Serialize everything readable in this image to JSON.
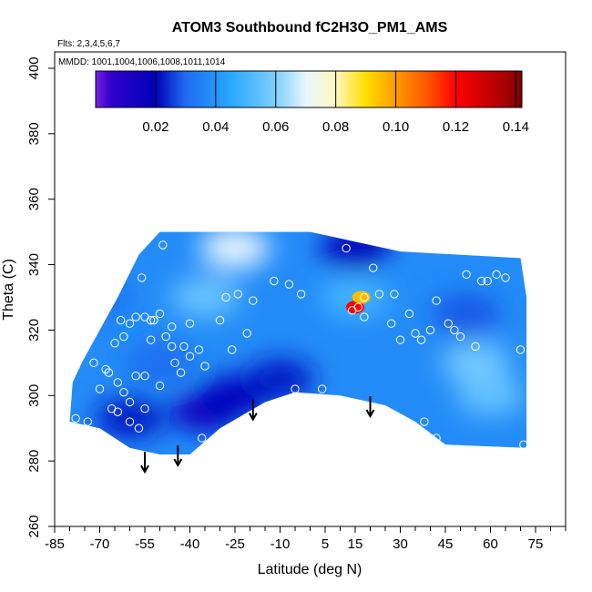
{
  "chart_data": {
    "type": "heatmap",
    "title": "ATOM3 Southbound fC2H3O_PM1_AMS",
    "flights_label": "Flts: 2,3,4,5,6,7",
    "dates_label": "MMDD: 1001,1004,1006,1008,1011,1014",
    "xlabel": "Latitude (deg N)",
    "ylabel": "Theta (C)",
    "xlim": [
      -85,
      85
    ],
    "ylim": [
      260,
      405
    ],
    "x_ticks": [
      -85,
      -70,
      -55,
      -40,
      -25,
      -10,
      5,
      15,
      30,
      45,
      60,
      75
    ],
    "y_ticks": [
      260,
      280,
      300,
      320,
      340,
      360,
      380,
      400
    ],
    "colorbar": {
      "min": 0.0,
      "max": 0.142,
      "ticks": [
        0.02,
        0.04,
        0.06,
        0.08,
        0.1,
        0.12,
        0.14
      ],
      "tick_labels": [
        "0.02",
        "0.04",
        "0.06",
        "0.08",
        "0.10",
        "0.12",
        "0.14"
      ],
      "stops": [
        {
          "value": 0.0,
          "color": "#7b1fe6"
        },
        {
          "value": 0.005,
          "color": "#3000cc"
        },
        {
          "value": 0.02,
          "color": "#0000b8"
        },
        {
          "value": 0.03,
          "color": "#1e6cf0"
        },
        {
          "value": 0.045,
          "color": "#28a8ff"
        },
        {
          "value": 0.06,
          "color": "#80cfff"
        },
        {
          "value": 0.07,
          "color": "#e8f6ff"
        },
        {
          "value": 0.08,
          "color": "#fff8c0"
        },
        {
          "value": 0.09,
          "color": "#ffe000"
        },
        {
          "value": 0.1,
          "color": "#ff9a00"
        },
        {
          "value": 0.11,
          "color": "#ff5a00"
        },
        {
          "value": 0.12,
          "color": "#ff0000"
        },
        {
          "value": 0.135,
          "color": "#b00000"
        },
        {
          "value": 0.142,
          "color": "#7a0000"
        }
      ]
    },
    "field_region": {
      "top_boundary": [
        [
          -79,
          304
        ],
        [
          -76,
          310
        ],
        [
          -70,
          320
        ],
        [
          -64,
          330
        ],
        [
          -57,
          343
        ],
        [
          -50,
          350
        ],
        [
          0,
          350
        ],
        [
          30,
          344
        ],
        [
          50,
          343
        ],
        [
          70,
          342
        ],
        [
          72,
          330
        ]
      ],
      "bottom_boundary": [
        [
          -80,
          292
        ],
        [
          -70,
          290
        ],
        [
          -60,
          284
        ],
        [
          -50,
          282
        ],
        [
          -40,
          282
        ],
        [
          -30,
          290
        ],
        [
          -15,
          298
        ],
        [
          -5,
          301
        ],
        [
          10,
          300
        ],
        [
          25,
          297
        ],
        [
          35,
          292
        ],
        [
          45,
          285
        ],
        [
          72,
          284
        ]
      ]
    },
    "field_patches": [
      {
        "lat": -35,
        "theta": 295,
        "value": 0.016
      },
      {
        "lat": -25,
        "theta": 300,
        "value": 0.018
      },
      {
        "lat": 15,
        "theta": 345,
        "value": 0.02
      },
      {
        "lat": -50,
        "theta": 310,
        "value": 0.03
      },
      {
        "lat": -60,
        "theta": 293,
        "value": 0.022
      },
      {
        "lat": -10,
        "theta": 305,
        "value": 0.022
      },
      {
        "lat": -70,
        "theta": 330,
        "value": 0.032
      },
      {
        "lat": -25,
        "theta": 345,
        "value": 0.07
      },
      {
        "lat": -35,
        "theta": 330,
        "value": 0.056
      },
      {
        "lat": 15,
        "theta": 330,
        "value": 0.05
      },
      {
        "lat": 15,
        "theta": 327,
        "value": 0.12
      },
      {
        "lat": 17,
        "theta": 330,
        "value": 0.095
      },
      {
        "lat": 55,
        "theta": 310,
        "value": 0.058
      },
      {
        "lat": 60,
        "theta": 300,
        "value": 0.055
      },
      {
        "lat": 52,
        "theta": 325,
        "value": 0.028
      }
    ],
    "observations": [
      {
        "lat": -78,
        "theta": 309
      },
      {
        "lat": -78,
        "theta": 293
      },
      {
        "lat": -72,
        "theta": 310
      },
      {
        "lat": -68,
        "theta": 308
      },
      {
        "lat": -67,
        "theta": 307
      },
      {
        "lat": -65,
        "theta": 316
      },
      {
        "lat": -66,
        "theta": 331
      },
      {
        "lat": -63,
        "theta": 323
      },
      {
        "lat": -62,
        "theta": 318
      },
      {
        "lat": -60,
        "theta": 322
      },
      {
        "lat": -58,
        "theta": 324
      },
      {
        "lat": -56,
        "theta": 336
      },
      {
        "lat": -55,
        "theta": 324
      },
      {
        "lat": -53,
        "theta": 323
      },
      {
        "lat": -52,
        "theta": 323
      },
      {
        "lat": -50,
        "theta": 325
      },
      {
        "lat": -49,
        "theta": 346
      },
      {
        "lat": -46,
        "theta": 321
      },
      {
        "lat": -45,
        "theta": 310
      },
      {
        "lat": -43,
        "theta": 307
      },
      {
        "lat": -40,
        "theta": 322
      },
      {
        "lat": -37,
        "theta": 314
      },
      {
        "lat": -35,
        "theta": 309
      },
      {
        "lat": -30,
        "theta": 323
      },
      {
        "lat": -28,
        "theta": 330
      },
      {
        "lat": -26,
        "theta": 314
      },
      {
        "lat": -24,
        "theta": 331
      },
      {
        "lat": -21,
        "theta": 319
      },
      {
        "lat": -19,
        "theta": 329
      },
      {
        "lat": -12,
        "theta": 335
      },
      {
        "lat": -7,
        "theta": 334
      },
      {
        "lat": -3,
        "theta": 331
      },
      {
        "lat": -5,
        "theta": 302
      },
      {
        "lat": 4,
        "theta": 302
      },
      {
        "lat": 12,
        "theta": 345
      },
      {
        "lat": 14,
        "theta": 326
      },
      {
        "lat": 16,
        "theta": 327
      },
      {
        "lat": 18,
        "theta": 324
      },
      {
        "lat": 18,
        "theta": 330
      },
      {
        "lat": 21,
        "theta": 339
      },
      {
        "lat": 23,
        "theta": 331
      },
      {
        "lat": 27,
        "theta": 322
      },
      {
        "lat": 28,
        "theta": 331
      },
      {
        "lat": 30,
        "theta": 317
      },
      {
        "lat": 33,
        "theta": 325
      },
      {
        "lat": 35,
        "theta": 319
      },
      {
        "lat": 37,
        "theta": 317
      },
      {
        "lat": 40,
        "theta": 320
      },
      {
        "lat": 42,
        "theta": 329
      },
      {
        "lat": 46,
        "theta": 322
      },
      {
        "lat": 48,
        "theta": 320
      },
      {
        "lat": 50,
        "theta": 318
      },
      {
        "lat": 52,
        "theta": 337
      },
      {
        "lat": 55,
        "theta": 315
      },
      {
        "lat": 57,
        "theta": 335
      },
      {
        "lat": 59,
        "theta": 335
      },
      {
        "lat": 62,
        "theta": 337
      },
      {
        "lat": 65,
        "theta": 336
      },
      {
        "lat": 70,
        "theta": 314
      },
      {
        "lat": 71,
        "theta": 285
      },
      {
        "lat": 38,
        "theta": 292
      },
      {
        "lat": 42,
        "theta": 287
      },
      {
        "lat": 47,
        "theta": 283
      },
      {
        "lat": -62,
        "theta": 301
      },
      {
        "lat": -60,
        "theta": 298
      },
      {
        "lat": -64,
        "theta": 295
      },
      {
        "lat": -60,
        "theta": 292
      },
      {
        "lat": -55,
        "theta": 296
      },
      {
        "lat": -57,
        "theta": 290
      },
      {
        "lat": -74,
        "theta": 292
      },
      {
        "lat": -66,
        "theta": 296
      },
      {
        "lat": -70,
        "theta": 302
      },
      {
        "lat": -64,
        "theta": 304
      },
      {
        "lat": -58,
        "theta": 306
      },
      {
        "lat": -55,
        "theta": 306
      },
      {
        "lat": -50,
        "theta": 303
      },
      {
        "lat": -46,
        "theta": 315
      },
      {
        "lat": -53,
        "theta": 317
      },
      {
        "lat": -48,
        "theta": 318
      },
      {
        "lat": -42,
        "theta": 315
      },
      {
        "lat": -40,
        "theta": 312
      },
      {
        "lat": -36,
        "theta": 287
      },
      {
        "lat": -57,
        "theta": 281
      }
    ],
    "arrows": [
      {
        "lat": -55,
        "theta": 280
      },
      {
        "lat": -44,
        "theta": 282
      },
      {
        "lat": -19,
        "theta": 296
      },
      {
        "lat": 20,
        "theta": 297
      }
    ]
  }
}
